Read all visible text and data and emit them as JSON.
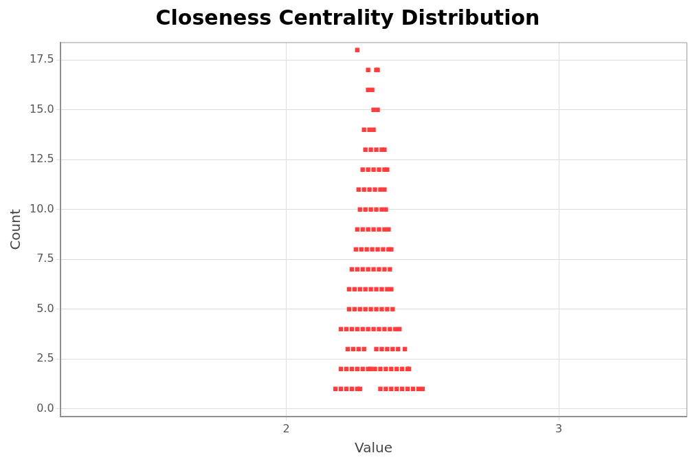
{
  "chart_data": {
    "type": "scatter",
    "title": "Closeness Centrality Distribution",
    "xlabel": "Value",
    "ylabel": "Count",
    "xlim": [
      1.17,
      3.47
    ],
    "xticks": [
      2,
      3
    ],
    "ylim": [
      -0.38,
      18.37
    ],
    "yticks": [
      {
        "value": 0,
        "label": "0.0"
      },
      {
        "value": 2.5,
        "label": "2.5"
      },
      {
        "value": 5,
        "label": "5.0"
      },
      {
        "value": 7.5,
        "label": "7.5"
      },
      {
        "value": 10,
        "label": "10.0"
      },
      {
        "value": 12.5,
        "label": "12.5"
      },
      {
        "value": 15,
        "label": "15.0"
      },
      {
        "value": 17.5,
        "label": "17.5"
      }
    ],
    "grid": true,
    "legend": false,
    "marker": "square",
    "series": [
      {
        "color": "#ff3b3b",
        "x": [
          2.18,
          2.2,
          2.22,
          2.24,
          2.26,
          2.27,
          2.345,
          2.365,
          2.385,
          2.405,
          2.425,
          2.445,
          2.465,
          2.485,
          2.5,
          2.2,
          2.22,
          2.24,
          2.26,
          2.28,
          2.3,
          2.31,
          2.325,
          2.345,
          2.365,
          2.385,
          2.405,
          2.425,
          2.445,
          2.45,
          2.225,
          2.245,
          2.265,
          2.285,
          2.33,
          2.35,
          2.37,
          2.39,
          2.41,
          2.435,
          2.2,
          2.22,
          2.24,
          2.26,
          2.28,
          2.3,
          2.32,
          2.34,
          2.36,
          2.38,
          2.4,
          2.415,
          2.23,
          2.25,
          2.27,
          2.29,
          2.31,
          2.33,
          2.35,
          2.37,
          2.39,
          2.23,
          2.25,
          2.27,
          2.29,
          2.31,
          2.33,
          2.35,
          2.37,
          2.385,
          2.24,
          2.26,
          2.28,
          2.3,
          2.32,
          2.34,
          2.36,
          2.38,
          2.255,
          2.275,
          2.295,
          2.315,
          2.335,
          2.355,
          2.375,
          2.385,
          2.26,
          2.28,
          2.3,
          2.32,
          2.34,
          2.36,
          2.375,
          2.27,
          2.29,
          2.31,
          2.33,
          2.35,
          2.365,
          2.265,
          2.285,
          2.305,
          2.325,
          2.345,
          2.36,
          2.28,
          2.3,
          2.32,
          2.34,
          2.36,
          2.37,
          2.29,
          2.31,
          2.33,
          2.35,
          2.36,
          2.285,
          2.305,
          2.32,
          2.32,
          2.335,
          2.3,
          2.315,
          2.3,
          2.33,
          2.335,
          2.26
        ],
        "values": [
          1,
          1,
          1,
          1,
          1,
          1,
          1,
          1,
          1,
          1,
          1,
          1,
          1,
          1,
          1,
          2,
          2,
          2,
          2,
          2,
          2,
          2,
          2,
          2,
          2,
          2,
          2,
          2,
          2,
          2,
          3,
          3,
          3,
          3,
          3,
          3,
          3,
          3,
          3,
          3,
          4,
          4,
          4,
          4,
          4,
          4,
          4,
          4,
          4,
          4,
          4,
          4,
          5,
          5,
          5,
          5,
          5,
          5,
          5,
          5,
          5,
          6,
          6,
          6,
          6,
          6,
          6,
          6,
          6,
          6,
          7,
          7,
          7,
          7,
          7,
          7,
          7,
          7,
          8,
          8,
          8,
          8,
          8,
          8,
          8,
          8,
          9,
          9,
          9,
          9,
          9,
          9,
          9,
          10,
          10,
          10,
          10,
          10,
          10,
          11,
          11,
          11,
          11,
          11,
          11,
          12,
          12,
          12,
          12,
          12,
          12,
          13,
          13,
          13,
          13,
          13,
          14,
          14,
          14,
          15,
          15,
          16,
          16,
          17,
          17,
          17,
          18
        ]
      }
    ]
  }
}
